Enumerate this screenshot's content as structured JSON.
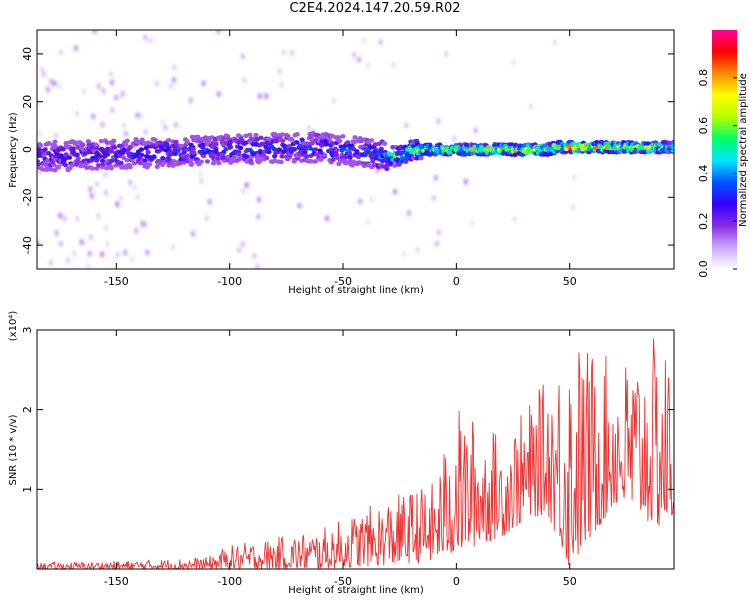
{
  "title": "C2E4.2024.147.20.59.R02",
  "chart_data": [
    {
      "type": "heatmap",
      "xlabel": "Height of straight line (km)",
      "ylabel": "Frequency (Hz)",
      "xlim": [
        -185,
        96
      ],
      "ylim": [
        -50,
        50
      ],
      "xticks": [
        -150,
        -100,
        -50,
        0,
        50
      ],
      "yticks": [
        -40,
        -20,
        0,
        20,
        40
      ],
      "colorbar": {
        "label": "Normalized spectral amplitude",
        "range": [
          0.0,
          1.0
        ],
        "ticks": [
          "0.0",
          "0.2",
          "0.4",
          "0.6",
          "0.8"
        ],
        "colors": [
          "#ffffff",
          "#c9a6ff",
          "#8a2be2",
          "#3300ff",
          "#0055ff",
          "#00e5ff",
          "#00ff66",
          "#b5ff00",
          "#ffff00",
          "#ff8800",
          "#ff0000",
          "#ff0099"
        ]
      },
      "band_center_hz": [
        {
          "x": -185,
          "y": -3
        },
        {
          "x": -150,
          "y": -2
        },
        {
          "x": -100,
          "y": 0
        },
        {
          "x": -60,
          "y": 1
        },
        {
          "x": -35,
          "y": -2
        },
        {
          "x": -25,
          "y": -3
        },
        {
          "x": -20,
          "y": 0
        },
        {
          "x": 0,
          "y": 0
        },
        {
          "x": 40,
          "y": 0
        },
        {
          "x": 45,
          "y": 1
        },
        {
          "x": 96,
          "y": 1
        }
      ],
      "peak_amplitude": [
        {
          "x": -185,
          "v": 0.35
        },
        {
          "x": -100,
          "v": 0.4
        },
        {
          "x": -40,
          "v": 0.4
        },
        {
          "x": -20,
          "v": 0.7
        },
        {
          "x": 0,
          "v": 0.85
        },
        {
          "x": 40,
          "v": 0.9
        },
        {
          "x": 60,
          "v": 0.95
        },
        {
          "x": 96,
          "v": 0.8
        }
      ]
    },
    {
      "type": "line",
      "xlabel": "Height of straight line (km)",
      "ylabel": "SNR (10 * v/v)",
      "y_multiplier": "(x10⁴)",
      "xlim": [
        -185,
        96
      ],
      "ylim": [
        0,
        3
      ],
      "xticks": [
        -150,
        -100,
        -50,
        0,
        50
      ],
      "yticks": [
        1,
        2,
        3
      ],
      "color": "#ee3333",
      "envelope": [
        {
          "x": -185,
          "low": 0.0,
          "high": 0.08
        },
        {
          "x": -150,
          "low": 0.0,
          "high": 0.1
        },
        {
          "x": -110,
          "low": 0.0,
          "high": 0.15
        },
        {
          "x": -100,
          "low": 0.0,
          "high": 0.3
        },
        {
          "x": -60,
          "low": 0.0,
          "high": 0.5
        },
        {
          "x": -30,
          "low": 0.05,
          "high": 0.9
        },
        {
          "x": -10,
          "low": 0.1,
          "high": 1.1
        },
        {
          "x": 0,
          "low": 0.2,
          "high": 2.05
        },
        {
          "x": 20,
          "low": 0.4,
          "high": 1.7
        },
        {
          "x": 30,
          "low": 0.6,
          "high": 2.0
        },
        {
          "x": 40,
          "low": 0.7,
          "high": 2.4
        },
        {
          "x": 50,
          "low": 0.0,
          "high": 3.0
        },
        {
          "x": 70,
          "low": 0.8,
          "high": 2.6
        },
        {
          "x": 90,
          "low": 0.5,
          "high": 2.95
        },
        {
          "x": 96,
          "low": 0.6,
          "high": 2.6
        }
      ]
    }
  ]
}
